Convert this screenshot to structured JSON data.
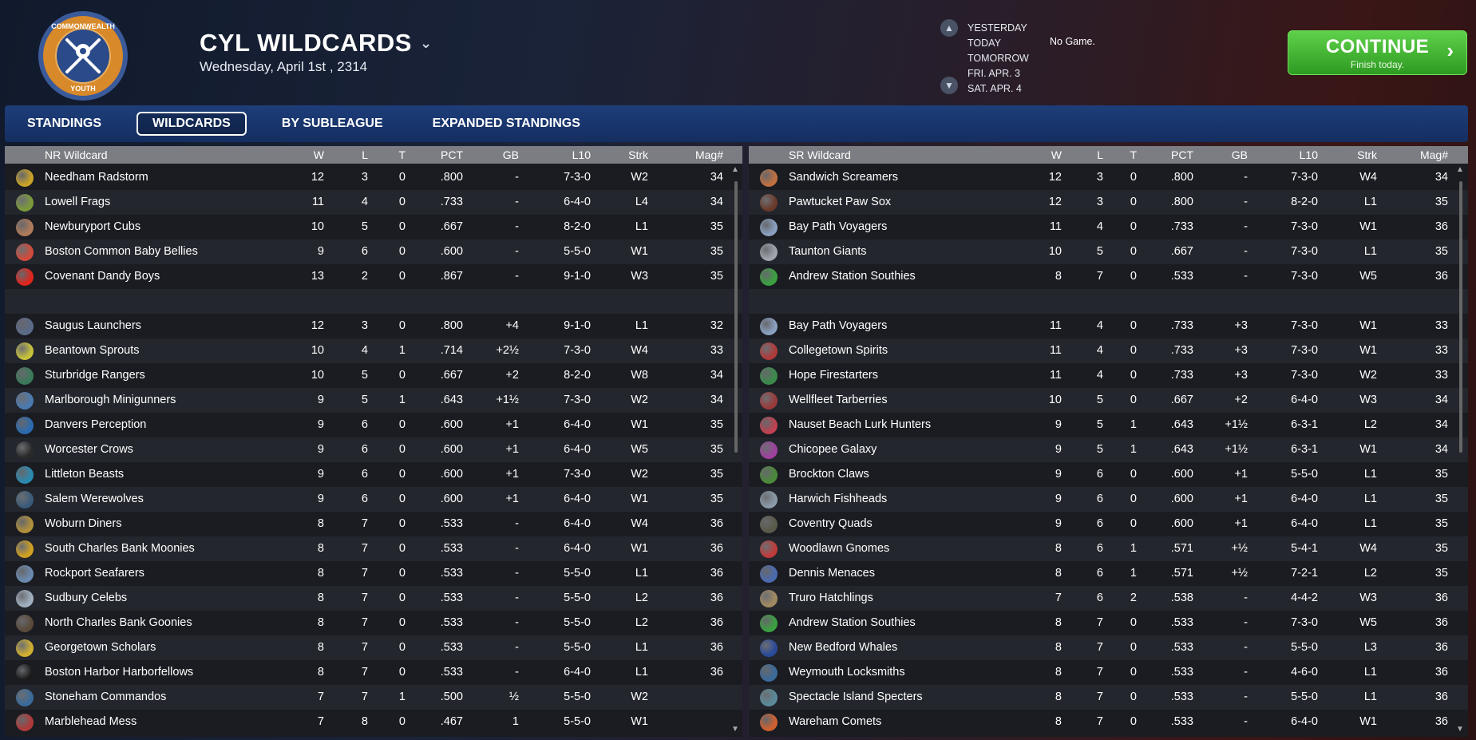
{
  "header": {
    "logo_text_top": "COMMONWEALTH",
    "logo_text_bottom": "YOUTH",
    "title": "CYL WILDCARDS",
    "date": "Wednesday, April 1st , 2314",
    "days": [
      "YESTERDAY",
      "TODAY",
      "TOMORROW",
      "FRI. APR. 3",
      "SAT. APR. 4"
    ],
    "no_game": "No Game.",
    "continue_label": "CONTINUE",
    "continue_sub": "Finish today."
  },
  "tabs": [
    {
      "label": "STANDINGS",
      "active": false
    },
    {
      "label": "WILDCARDS",
      "active": true
    },
    {
      "label": "BY SUBLEAGUE",
      "active": false
    },
    {
      "label": "EXPANDED STANDINGS",
      "active": false
    }
  ],
  "columns": [
    "W",
    "L",
    "T",
    "PCT",
    "GB",
    "L10",
    "Strk",
    "Mag#"
  ],
  "left": {
    "title": "NR  Wildcard",
    "leaders": [
      {
        "team": "Needham Radstorm",
        "w": "12",
        "l": "3",
        "t": "0",
        "pct": ".800",
        "gb": "-",
        "l10": "7-3-0",
        "strk": "W2",
        "mag": "34",
        "color": "#c9a227"
      },
      {
        "team": "Lowell Frags",
        "w": "11",
        "l": "4",
        "t": "0",
        "pct": ".733",
        "gb": "-",
        "l10": "6-4-0",
        "strk": "L4",
        "mag": "34",
        "color": "#7c9a3a"
      },
      {
        "team": "Newburyport Cubs",
        "w": "10",
        "l": "5",
        "t": "0",
        "pct": ".667",
        "gb": "-",
        "l10": "8-2-0",
        "strk": "L1",
        "mag": "35",
        "color": "#b07a5a"
      },
      {
        "team": "Boston Common Baby Bellies",
        "w": "9",
        "l": "6",
        "t": "0",
        "pct": ".600",
        "gb": "-",
        "l10": "5-5-0",
        "strk": "W1",
        "mag": "35",
        "color": "#d24a3a"
      },
      {
        "team": "Covenant Dandy Boys",
        "w": "13",
        "l": "2",
        "t": "0",
        "pct": ".867",
        "gb": "-",
        "l10": "9-1-0",
        "strk": "W3",
        "mag": "35",
        "color": "#e0241c"
      }
    ],
    "chasers": [
      {
        "team": "Saugus Launchers",
        "w": "12",
        "l": "3",
        "t": "0",
        "pct": ".800",
        "gb": "+4",
        "l10": "9-1-0",
        "strk": "L1",
        "mag": "32",
        "color": "#5a6a8a"
      },
      {
        "team": "Beantown Sprouts",
        "w": "10",
        "l": "4",
        "t": "1",
        "pct": ".714",
        "gb": "+2½",
        "l10": "7-3-0",
        "strk": "W4",
        "mag": "33",
        "color": "#c8c23a"
      },
      {
        "team": "Sturbridge Rangers",
        "w": "10",
        "l": "5",
        "t": "0",
        "pct": ".667",
        "gb": "+2",
        "l10": "8-2-0",
        "strk": "W8",
        "mag": "34",
        "color": "#3a7a5a"
      },
      {
        "team": "Marlborough Minigunners",
        "w": "9",
        "l": "5",
        "t": "1",
        "pct": ".643",
        "gb": "+1½",
        "l10": "7-3-0",
        "strk": "W2",
        "mag": "34",
        "color": "#4a7ab0"
      },
      {
        "team": "Danvers Perception",
        "w": "9",
        "l": "6",
        "t": "0",
        "pct": ".600",
        "gb": "+1",
        "l10": "6-4-0",
        "strk": "W1",
        "mag": "35",
        "color": "#2a6ab0"
      },
      {
        "team": "Worcester Crows",
        "w": "9",
        "l": "6",
        "t": "0",
        "pct": ".600",
        "gb": "+1",
        "l10": "6-4-0",
        "strk": "W5",
        "mag": "35",
        "color": "#2a2a2a"
      },
      {
        "team": "Littleton Beasts",
        "w": "9",
        "l": "6",
        "t": "0",
        "pct": ".600",
        "gb": "+1",
        "l10": "7-3-0",
        "strk": "W2",
        "mag": "35",
        "color": "#2a8ab0"
      },
      {
        "team": "Salem Werewolves",
        "w": "9",
        "l": "6",
        "t": "0",
        "pct": ".600",
        "gb": "+1",
        "l10": "6-4-0",
        "strk": "W1",
        "mag": "35",
        "color": "#3a5a7a"
      },
      {
        "team": "Woburn Diners",
        "w": "8",
        "l": "7",
        "t": "0",
        "pct": ".533",
        "gb": "-",
        "l10": "6-4-0",
        "strk": "W4",
        "mag": "36",
        "color": "#b0903a"
      },
      {
        "team": "South Charles Bank Moonies",
        "w": "8",
        "l": "7",
        "t": "0",
        "pct": ".533",
        "gb": "-",
        "l10": "6-4-0",
        "strk": "W1",
        "mag": "36",
        "color": "#d0a020"
      },
      {
        "team": "Rockport Seafarers",
        "w": "8",
        "l": "7",
        "t": "0",
        "pct": ".533",
        "gb": "-",
        "l10": "5-5-0",
        "strk": "L1",
        "mag": "36",
        "color": "#6a8ab0"
      },
      {
        "team": "Sudbury Celebs",
        "w": "8",
        "l": "7",
        "t": "0",
        "pct": ".533",
        "gb": "-",
        "l10": "5-5-0",
        "strk": "L2",
        "mag": "36",
        "color": "#a0b0c0"
      },
      {
        "team": "North Charles Bank Goonies",
        "w": "8",
        "l": "7",
        "t": "0",
        "pct": ".533",
        "gb": "-",
        "l10": "5-5-0",
        "strk": "L2",
        "mag": "36",
        "color": "#5a4a3a"
      },
      {
        "team": "Georgetown Scholars",
        "w": "8",
        "l": "7",
        "t": "0",
        "pct": ".533",
        "gb": "-",
        "l10": "5-5-0",
        "strk": "L1",
        "mag": "36",
        "color": "#d0b030"
      },
      {
        "team": "Boston Harbor Harborfellows",
        "w": "8",
        "l": "7",
        "t": "0",
        "pct": ".533",
        "gb": "-",
        "l10": "6-4-0",
        "strk": "L1",
        "mag": "36",
        "color": "#1a1a1a"
      },
      {
        "team": "Stoneham Commandos",
        "w": "7",
        "l": "7",
        "t": "1",
        "pct": ".500",
        "gb": "½",
        "l10": "5-5-0",
        "strk": "W2",
        "mag": "",
        "color": "#3a6a9a"
      },
      {
        "team": "Marblehead Mess",
        "w": "7",
        "l": "8",
        "t": "0",
        "pct": ".467",
        "gb": "1",
        "l10": "5-5-0",
        "strk": "W1",
        "mag": "",
        "color": "#b03a3a"
      }
    ]
  },
  "right": {
    "title": "SR  Wildcard",
    "leaders": [
      {
        "team": "Sandwich Screamers",
        "w": "12",
        "l": "3",
        "t": "0",
        "pct": ".800",
        "gb": "-",
        "l10": "7-3-0",
        "strk": "W4",
        "mag": "34",
        "color": "#c07040"
      },
      {
        "team": "Pawtucket Paw Sox",
        "w": "12",
        "l": "3",
        "t": "0",
        "pct": ".800",
        "gb": "-",
        "l10": "8-2-0",
        "strk": "L1",
        "mag": "35",
        "color": "#6a3a2a"
      },
      {
        "team": "Bay Path Voyagers",
        "w": "11",
        "l": "4",
        "t": "0",
        "pct": ".733",
        "gb": "-",
        "l10": "7-3-0",
        "strk": "W1",
        "mag": "36",
        "color": "#8aa0c0"
      },
      {
        "team": "Taunton Giants",
        "w": "10",
        "l": "5",
        "t": "0",
        "pct": ".667",
        "gb": "-",
        "l10": "7-3-0",
        "strk": "L1",
        "mag": "35",
        "color": "#a0a4ac"
      },
      {
        "team": "Andrew Station Southies",
        "w": "8",
        "l": "7",
        "t": "0",
        "pct": ".533",
        "gb": "-",
        "l10": "7-3-0",
        "strk": "W5",
        "mag": "36",
        "color": "#3aa040"
      }
    ],
    "chasers": [
      {
        "team": "Bay Path Voyagers",
        "w": "11",
        "l": "4",
        "t": "0",
        "pct": ".733",
        "gb": "+3",
        "l10": "7-3-0",
        "strk": "W1",
        "mag": "33",
        "color": "#8aa0c0"
      },
      {
        "team": "Collegetown Spirits",
        "w": "11",
        "l": "4",
        "t": "0",
        "pct": ".733",
        "gb": "+3",
        "l10": "7-3-0",
        "strk": "W1",
        "mag": "33",
        "color": "#b03a3a"
      },
      {
        "team": "Hope Firestarters",
        "w": "11",
        "l": "4",
        "t": "0",
        "pct": ".733",
        "gb": "+3",
        "l10": "7-3-0",
        "strk": "W2",
        "mag": "33",
        "color": "#3a8a4a"
      },
      {
        "team": "Wellfleet Tarberries",
        "w": "10",
        "l": "5",
        "t": "0",
        "pct": ".667",
        "gb": "+2",
        "l10": "6-4-0",
        "strk": "W3",
        "mag": "34",
        "color": "#9a3a3a"
      },
      {
        "team": "Nauset Beach Lurk Hunters",
        "w": "9",
        "l": "5",
        "t": "1",
        "pct": ".643",
        "gb": "+1½",
        "l10": "6-3-1",
        "strk": "L2",
        "mag": "34",
        "color": "#c04050"
      },
      {
        "team": "Chicopee Galaxy",
        "w": "9",
        "l": "5",
        "t": "1",
        "pct": ".643",
        "gb": "+1½",
        "l10": "6-3-1",
        "strk": "W1",
        "mag": "34",
        "color": "#a040a0"
      },
      {
        "team": "Brockton Claws",
        "w": "9",
        "l": "6",
        "t": "0",
        "pct": ".600",
        "gb": "+1",
        "l10": "5-5-0",
        "strk": "L1",
        "mag": "35",
        "color": "#4a8a3a"
      },
      {
        "team": "Harwich Fishheads",
        "w": "9",
        "l": "6",
        "t": "0",
        "pct": ".600",
        "gb": "+1",
        "l10": "6-4-0",
        "strk": "L1",
        "mag": "35",
        "color": "#8a9aa8"
      },
      {
        "team": "Coventry Quads",
        "w": "9",
        "l": "6",
        "t": "0",
        "pct": ".600",
        "gb": "+1",
        "l10": "6-4-0",
        "strk": "L1",
        "mag": "35",
        "color": "#5a5a4a"
      },
      {
        "team": "Woodlawn Gnomes",
        "w": "8",
        "l": "6",
        "t": "1",
        "pct": ".571",
        "gb": "+½",
        "l10": "5-4-1",
        "strk": "W4",
        "mag": "35",
        "color": "#c03a3a"
      },
      {
        "team": "Dennis Menaces",
        "w": "8",
        "l": "6",
        "t": "1",
        "pct": ".571",
        "gb": "+½",
        "l10": "7-2-1",
        "strk": "L2",
        "mag": "35",
        "color": "#4a6ab0"
      },
      {
        "team": "Truro Hatchlings",
        "w": "7",
        "l": "6",
        "t": "2",
        "pct": ".538",
        "gb": "-",
        "l10": "4-4-2",
        "strk": "W3",
        "mag": "36",
        "color": "#a08a60"
      },
      {
        "team": "Andrew Station Southies",
        "w": "8",
        "l": "7",
        "t": "0",
        "pct": ".533",
        "gb": "-",
        "l10": "7-3-0",
        "strk": "W5",
        "mag": "36",
        "color": "#3aa040"
      },
      {
        "team": "New Bedford Whales",
        "w": "8",
        "l": "7",
        "t": "0",
        "pct": ".533",
        "gb": "-",
        "l10": "5-5-0",
        "strk": "L3",
        "mag": "36",
        "color": "#2a4a9a"
      },
      {
        "team": "Weymouth Locksmiths",
        "w": "8",
        "l": "7",
        "t": "0",
        "pct": ".533",
        "gb": "-",
        "l10": "4-6-0",
        "strk": "L1",
        "mag": "36",
        "color": "#3a6a9a"
      },
      {
        "team": "Spectacle Island Specters",
        "w": "8",
        "l": "7",
        "t": "0",
        "pct": ".533",
        "gb": "-",
        "l10": "5-5-0",
        "strk": "L1",
        "mag": "36",
        "color": "#5a8a9a"
      },
      {
        "team": "Wareham Comets",
        "w": "8",
        "l": "7",
        "t": "0",
        "pct": ".533",
        "gb": "-",
        "l10": "6-4-0",
        "strk": "W1",
        "mag": "36",
        "color": "#d06030"
      }
    ]
  }
}
